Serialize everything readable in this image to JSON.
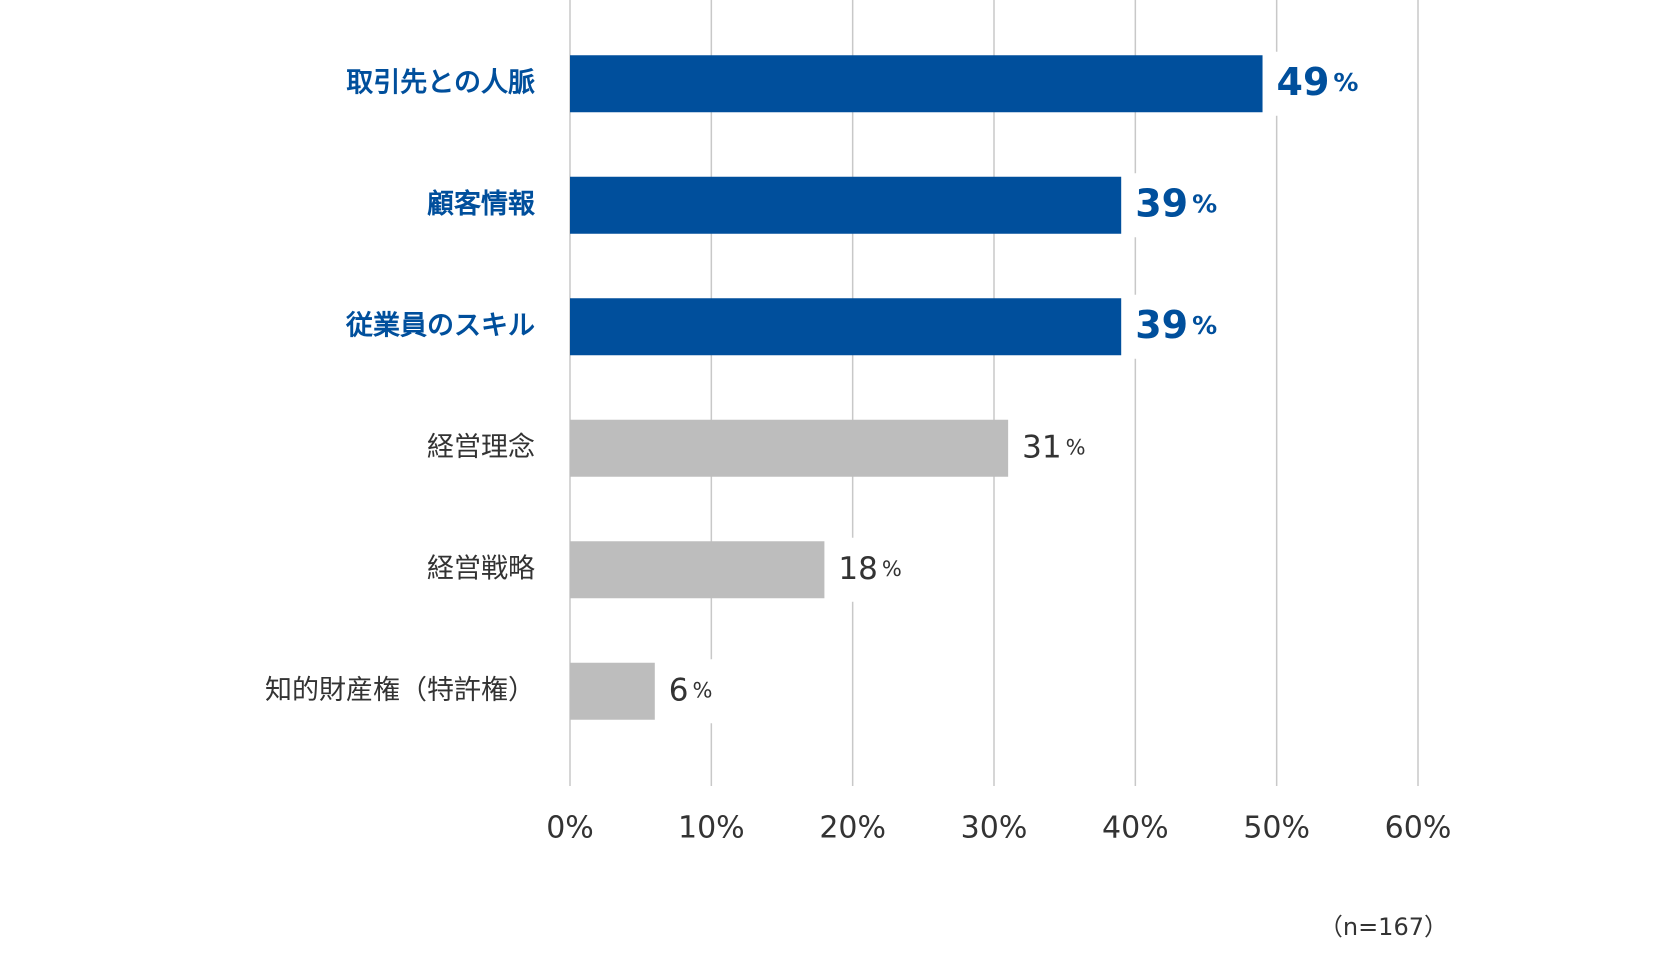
{
  "chart_data": {
    "type": "barh",
    "categories": [
      "取引先との人脈",
      "顧客情報",
      "従業員のスキル",
      "経営理念",
      "経営戦略",
      "知的財産権（特許権）"
    ],
    "values": [
      49,
      39,
      39,
      31,
      18,
      6
    ],
    "value_labels": [
      "49%",
      "39%",
      "39%",
      "31%",
      "18%",
      "6%"
    ],
    "colors": [
      "#004f9c",
      "#004f9c",
      "#004f9c",
      "#bdbdbd",
      "#bdbdbd",
      "#bdbdbd"
    ],
    "label_colors": [
      "#004f9c",
      "#004f9c",
      "#004f9c",
      "#333333",
      "#333333",
      "#333333"
    ],
    "xlim": [
      0,
      60
    ],
    "xticks": [
      {
        "value": 0,
        "label": "0%"
      },
      {
        "value": 10,
        "label": "10%"
      },
      {
        "value": 20,
        "label": "20%"
      },
      {
        "value": 30,
        "label": "30%"
      },
      {
        "value": 40,
        "label": "40%"
      },
      {
        "value": 50,
        "label": "50%"
      },
      {
        "value": 60,
        "label": "60%"
      }
    ],
    "grid": true,
    "annotation": "（n=167）"
  }
}
